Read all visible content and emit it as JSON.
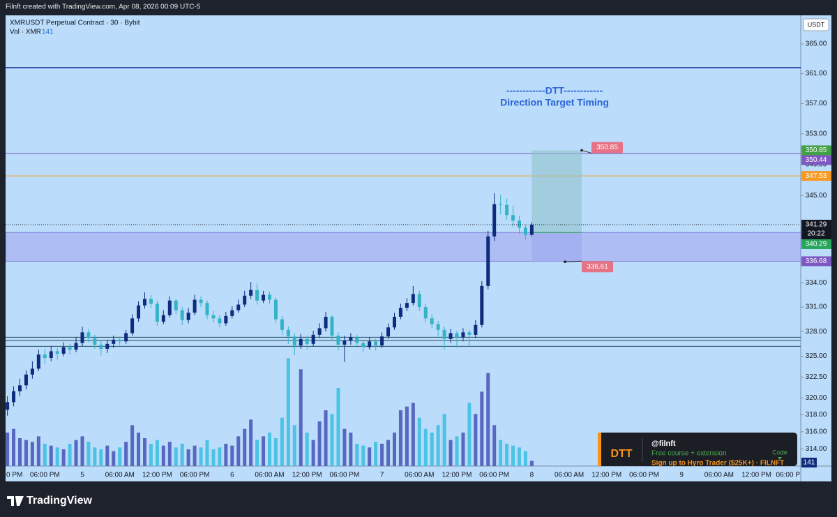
{
  "top_bar": "Filnft created with TradingView.com, Apr 08, 2026 00:09 UTC-5",
  "chart_data": {
    "type": "candlestick",
    "title": "XMRUSDT Perpetual Contract · 30 · Bybit",
    "volume_legend": "Vol · XMR",
    "currency": "USDT",
    "x_labels": [
      "0 PM",
      "06:00 PM",
      "5",
      "06:00 AM",
      "12:00 PM",
      "06:00 PM",
      "6",
      "06:00 AM",
      "12:00 PM",
      "06:00 PM",
      "7",
      "06:00 AM",
      "12:00 PM",
      "06:00 PM",
      "8",
      "06:00 AM",
      "12:00 PM",
      "06:00 PM",
      "9",
      "06:00 AM",
      "12:00 PM",
      "06:00 P"
    ],
    "open": [
      318.6,
      319.5,
      320.8,
      321.5,
      322.8,
      323.5,
      325.2,
      324.8,
      325.6,
      325.3,
      326.1,
      325.8,
      326.6,
      327.9,
      327.2,
      326.4,
      325.9,
      326.5,
      327.0,
      326.8,
      327.8,
      329.6,
      331.2,
      332.0,
      331.4,
      329.2,
      330.0,
      331.8,
      330.6,
      329.4,
      330.3,
      331.9,
      331.5,
      330.0,
      329.6,
      329.0,
      329.9,
      330.6,
      331.3,
      332.4,
      333.1,
      331.8,
      332.5,
      331.9,
      329.5,
      328.2,
      327.4,
      326.3,
      327.1,
      326.5,
      327.6,
      328.4,
      329.8,
      327.5,
      326.4,
      326.9,
      327.3,
      326.6,
      326.1,
      326.8,
      326.3,
      327.4,
      328.5,
      329.8,
      330.9,
      331.5,
      332.6,
      331.0,
      329.6,
      328.9,
      328.2,
      327.1,
      327.8,
      327.3,
      327.9,
      327.6,
      328.8,
      333.6,
      339.8,
      343.9,
      343.8,
      342.5,
      341.8,
      340.9,
      340.0
    ],
    "high": [
      320.2,
      321.4,
      322.3,
      323.3,
      324.4,
      325.8,
      325.9,
      326.2,
      326.0,
      326.7,
      326.5,
      327.3,
      328.6,
      328.3,
      327.6,
      326.8,
      327.0,
      327.5,
      327.4,
      328.2,
      330.1,
      331.7,
      332.8,
      332.5,
      331.8,
      330.6,
      332.3,
      332.0,
      331.0,
      330.9,
      332.5,
      332.3,
      331.8,
      330.5,
      330.0,
      330.4,
      331.1,
      331.9,
      333.0,
      334.1,
      333.9,
      333.0,
      332.9,
      332.2,
      329.9,
      328.6,
      327.8,
      327.7,
      327.5,
      328.1,
      329.0,
      330.4,
      330.0,
      327.9,
      327.5,
      327.8,
      327.6,
      327.0,
      327.3,
      327.1,
      327.9,
      329.0,
      330.3,
      331.4,
      332.1,
      333.6,
      333.0,
      331.4,
      330.1,
      329.3,
      328.6,
      328.3,
      328.1,
      328.4,
      328.2,
      329.4,
      334.2,
      340.5,
      345.3,
      345.1,
      344.6,
      343.7,
      342.4,
      341.3,
      341.6
    ],
    "low": [
      317.9,
      319.0,
      320.2,
      321.0,
      322.3,
      323.2,
      324.1,
      324.4,
      324.6,
      325.0,
      325.2,
      325.5,
      326.2,
      326.7,
      325.9,
      325.1,
      325.4,
      326.0,
      326.3,
      326.5,
      327.5,
      329.2,
      330.8,
      330.9,
      328.7,
      328.9,
      329.7,
      330.1,
      328.8,
      329.0,
      330.0,
      331.0,
      329.5,
      329.1,
      328.5,
      328.7,
      329.6,
      330.3,
      331.0,
      332.0,
      331.3,
      331.5,
      331.4,
      329.0,
      327.6,
      326.5,
      325.1,
      325.9,
      325.8,
      326.2,
      327.2,
      328.0,
      327.0,
      325.7,
      324.3,
      326.4,
      326.0,
      325.5,
      325.8,
      325.7,
      326.0,
      327.1,
      328.2,
      329.5,
      330.5,
      331.2,
      330.5,
      329.1,
      328.4,
      327.4,
      325.8,
      326.6,
      326.0,
      326.8,
      326.2,
      327.2,
      328.5,
      333.2,
      339.2,
      342.6,
      341.9,
      341.0,
      340.1,
      339.4,
      339.8
    ],
    "close": [
      319.5,
      320.8,
      321.5,
      322.8,
      323.5,
      325.2,
      324.8,
      325.6,
      325.3,
      326.1,
      325.8,
      326.6,
      327.9,
      327.2,
      326.4,
      325.9,
      326.5,
      327.0,
      326.8,
      327.8,
      329.6,
      331.2,
      332.0,
      331.4,
      329.2,
      330.0,
      331.8,
      330.6,
      329.4,
      330.3,
      331.9,
      331.5,
      330.0,
      329.6,
      329.0,
      329.9,
      330.6,
      331.3,
      332.4,
      333.1,
      331.8,
      332.5,
      331.9,
      329.5,
      328.2,
      327.4,
      326.3,
      327.1,
      326.5,
      327.6,
      328.4,
      329.8,
      327.5,
      326.4,
      326.9,
      327.3,
      326.6,
      326.1,
      326.8,
      326.3,
      327.4,
      328.5,
      329.8,
      330.9,
      331.5,
      332.6,
      331.0,
      329.6,
      328.9,
      328.2,
      327.1,
      327.8,
      327.3,
      327.9,
      327.6,
      328.8,
      333.6,
      339.8,
      343.9,
      343.8,
      342.5,
      341.8,
      340.9,
      340.0,
      341.29
    ],
    "volume": [
      900,
      1000,
      750,
      700,
      650,
      800,
      600,
      550,
      500,
      450,
      600,
      700,
      800,
      650,
      500,
      450,
      550,
      400,
      500,
      650,
      1100,
      900,
      750,
      600,
      700,
      550,
      650,
      500,
      600,
      450,
      550,
      500,
      700,
      450,
      500,
      600,
      550,
      800,
      1000,
      1250,
      700,
      800,
      900,
      750,
      1300,
      2900,
      1100,
      2600,
      900,
      700,
      1200,
      1500,
      1400,
      2100,
      1000,
      900,
      600,
      550,
      500,
      650,
      600,
      700,
      900,
      1500,
      1600,
      1700,
      1300,
      1000,
      900,
      1100,
      1400,
      700,
      800,
      900,
      1700,
      1400,
      2000,
      2500,
      1100,
      700,
      600,
      550,
      500,
      400,
      141
    ],
    "up_color": "#0d2c7d",
    "down_color": "#35b3c6",
    "volume_up_color": "#5867c0",
    "volume_down_color": "#4cc3e4",
    "ylim": [
      312,
      368.9
    ],
    "log_scale": true,
    "grid": false,
    "yticks": [
      {
        "value": 365,
        "label": "365.00"
      },
      {
        "value": 361,
        "label": "361.00"
      },
      {
        "value": 357,
        "label": "357.00"
      },
      {
        "value": 353,
        "label": "353.00"
      },
      {
        "value": 349,
        "label": "349.00"
      },
      {
        "value": 345,
        "label": "345.00"
      },
      {
        "value": 334,
        "label": "334.00"
      },
      {
        "value": 331,
        "label": "331.00"
      },
      {
        "value": 328,
        "label": "328.00"
      },
      {
        "value": 325,
        "label": "325.00"
      },
      {
        "value": 322.5,
        "label": "322.50"
      },
      {
        "value": 320,
        "label": "320.00"
      },
      {
        "value": 318,
        "label": "318.00"
      },
      {
        "value": 316,
        "label": "316.00"
      },
      {
        "value": 314,
        "label": "314.00"
      }
    ],
    "volume_ylim": [
      0,
      3000
    ],
    "hlines": [
      {
        "value": 361.8,
        "color": "#0d2c9a"
      },
      {
        "value": 350.44,
        "color": "#7e57c2"
      },
      {
        "value": 347.53,
        "color": "#f5a623"
      },
      {
        "value": 327.3,
        "color": "#1f4e5f"
      },
      {
        "value": 326.9,
        "color": "#1f4e5f"
      },
      {
        "value": 326.2,
        "color": "#1f4e5f"
      }
    ],
    "zone": {
      "low": 336.68,
      "high": 340.29,
      "color": "#a9b4f2"
    },
    "position": {
      "entry": 340.29,
      "target": 350.85,
      "stop": 336.61,
      "label_color": "#e57385"
    },
    "price_labels": [
      {
        "value": 350.85,
        "color": "#43a047"
      },
      {
        "value": 350.44,
        "color": "#7e57c2"
      },
      {
        "value": 347.53,
        "color": "#f59a23"
      },
      {
        "value": 340.29,
        "color": "#26a65b"
      },
      {
        "value": 336.68,
        "color": "#7e57c2"
      }
    ],
    "current_price": {
      "value": 341.29,
      "countdown": "20:22"
    },
    "annotation": [
      "------------DTT------------",
      "Direction Target Timing"
    ],
    "promo": {
      "badge": "DTT",
      "handle": "@filnft",
      "line1": "Free course + extension",
      "line2": "Sign up to Hyro Trader ($25K+) · FILNFT",
      "code": "Code"
    }
  },
  "brand": "TradingView"
}
